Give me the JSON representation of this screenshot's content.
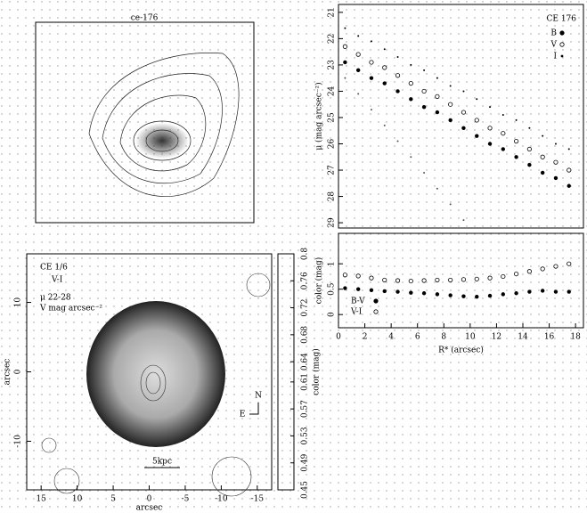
{
  "chart_data": [
    {
      "type": "contour",
      "title": "ce-176"
    },
    {
      "type": "scatter",
      "annotation": "CE 176",
      "ylabel": "μ (mag arcsec⁻²)",
      "x": [
        0.5,
        1.5,
        2.5,
        3.5,
        4.5,
        5.5,
        6.5,
        7.5,
        8.5,
        9.5,
        10.5,
        11.5,
        12.5,
        13.5,
        14.5,
        15.5,
        16.5,
        17.5
      ],
      "xlim": [
        0,
        18.6
      ],
      "ylim": [
        29.2,
        20.7
      ],
      "yticks": [
        21,
        22,
        23,
        24,
        25,
        26,
        27,
        28,
        29
      ],
      "series": [
        {
          "name": "B",
          "marker": "filled",
          "color": "#000000",
          "values": [
            22.9,
            23.2,
            23.5,
            23.7,
            24.0,
            24.3,
            24.6,
            24.8,
            25.1,
            25.4,
            25.7,
            26.0,
            26.2,
            26.5,
            26.8,
            27.1,
            27.3,
            27.6
          ]
        },
        {
          "name": "V",
          "marker": "open",
          "color": "#000000",
          "values": [
            22.3,
            22.6,
            22.9,
            23.1,
            23.4,
            23.7,
            24.0,
            24.2,
            24.5,
            24.8,
            25.1,
            25.4,
            25.6,
            25.9,
            26.2,
            26.5,
            26.7,
            27.0
          ]
        },
        {
          "name": "I",
          "marker": "dot",
          "color": "#000000",
          "values": [
            21.6,
            21.9,
            22.1,
            22.4,
            22.7,
            23.0,
            23.2,
            23.5,
            23.8,
            24.0,
            24.3,
            24.6,
            24.9,
            25.1,
            25.4,
            25.7,
            26.0,
            26.2
          ]
        },
        {
          "marker": "dot",
          "color": "#555555",
          "values": [
            23.5,
            24.1,
            24.7,
            25.3,
            25.9,
            26.5,
            27.1,
            27.7,
            28.3,
            28.9,
            null,
            null,
            null,
            null,
            null,
            null,
            null,
            null
          ]
        }
      ]
    },
    {
      "type": "scatter",
      "xlabel": "R* (arcsec)",
      "ylabel": "color (mag)",
      "x": [
        0.5,
        1.5,
        2.5,
        3.5,
        4.5,
        5.5,
        6.5,
        7.5,
        8.5,
        9.5,
        10.5,
        11.5,
        12.5,
        13.5,
        14.5,
        15.5,
        16.5,
        17.5
      ],
      "xlim": [
        0,
        18.6
      ],
      "xticks": [
        0,
        2,
        4,
        6,
        8,
        10,
        12,
        14,
        16,
        18
      ],
      "ylim": [
        -0.26,
        1.6
      ],
      "yticks": [
        0,
        0.5,
        1
      ],
      "series": [
        {
          "name": "B-V",
          "marker": "filled",
          "color": "#000000",
          "values": [
            0.52,
            0.5,
            0.48,
            0.46,
            0.45,
            0.43,
            0.42,
            0.4,
            0.38,
            0.36,
            0.35,
            0.37,
            0.4,
            0.42,
            0.45,
            0.47,
            0.45,
            0.45
          ]
        },
        {
          "name": "V-I",
          "marker": "open",
          "color": "#000000",
          "values": [
            0.78,
            0.76,
            0.72,
            0.68,
            0.67,
            0.66,
            0.67,
            0.68,
            0.68,
            0.69,
            0.7,
            0.72,
            0.75,
            0.8,
            0.85,
            0.9,
            0.95,
            1.0
          ]
        }
      ]
    },
    {
      "type": "image",
      "labels": [
        "CE 1/6",
        "V-I",
        "μ 22-28",
        "V mag arcsec⁻²"
      ],
      "scale_label": "5kpc",
      "compass": [
        "N",
        "E"
      ],
      "xlabel": "arcsec",
      "ylabel": "arcsec",
      "xlim": [
        17,
        -17
      ],
      "xticks": [
        15,
        10,
        5,
        0,
        -5,
        -10,
        -15
      ],
      "ylim": [
        -17,
        17
      ],
      "yticks": [
        10,
        0,
        -10
      ],
      "colorbar": {
        "label": "color (mag)",
        "lim": [
          0.45,
          0.8
        ],
        "ticks": [
          0.8,
          0.76,
          0.72,
          0.68,
          0.64,
          0.61,
          0.57,
          0.53,
          0.49,
          0.45
        ]
      }
    }
  ]
}
